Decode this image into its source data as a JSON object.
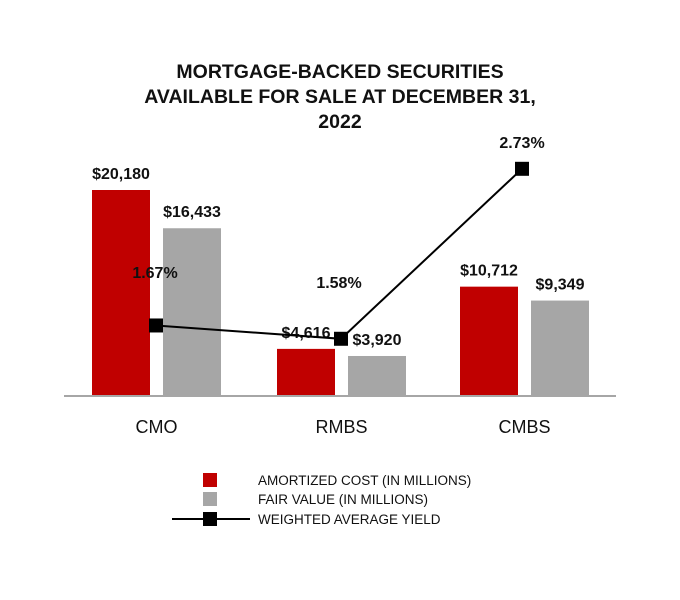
{
  "chart_data": {
    "type": "bar",
    "title_lines": [
      "MORTGAGE-BACKED SECURITIES",
      "AVAILABLE FOR SALE AT DECEMBER 31,",
      "2022"
    ],
    "categories": [
      "CMO",
      "RMBS",
      "CMBS"
    ],
    "series": [
      {
        "name": "AMORTIZED COST (IN MILLIONS)",
        "kind": "bar",
        "color": "#c00000",
        "values": [
          20180,
          4616,
          10712
        ],
        "labels": [
          "$20,180",
          "$4,616",
          "$10,712"
        ]
      },
      {
        "name": "FAIR VALUE (IN MILLIONS)",
        "kind": "bar",
        "color": "#a6a6a6",
        "values": [
          16433,
          3920,
          9349
        ],
        "labels": [
          "$16,433",
          "$3,920",
          "$9,349"
        ]
      },
      {
        "name": "WEIGHTED AVERAGE YIELD",
        "kind": "line",
        "color": "#000000",
        "values": [
          1.67,
          1.58,
          2.73
        ],
        "labels": [
          "1.67%",
          "1.58%",
          "2.73%"
        ]
      }
    ],
    "legend_position": "bottom",
    "grid": false
  }
}
